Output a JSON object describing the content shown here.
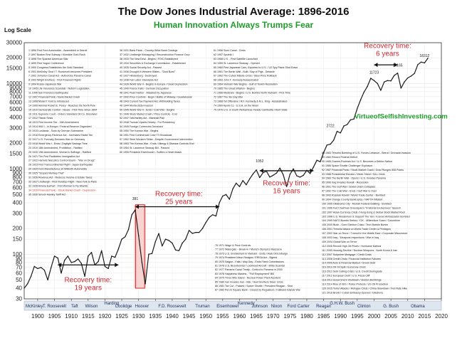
{
  "chart_data": {
    "type": "line",
    "title": "The Dow Jones Industrial Average: 1896-2016",
    "subtitle": "Human Innovation Always Trumps Fear",
    "ylabel": "Log Scale",
    "y_scale": "log",
    "ylim": [
      30,
      30000
    ],
    "xlim": [
      1896,
      2020
    ],
    "y_ticks": [
      30,
      40,
      50,
      60,
      70,
      80,
      90,
      100,
      150,
      200,
      300,
      400,
      500,
      600,
      700,
      800,
      900,
      1000,
      1500,
      2000,
      3000,
      4000,
      5000,
      6000,
      7000,
      8000,
      9000,
      10000,
      15000,
      20000,
      30000
    ],
    "y_tick_labels": [
      "30",
      "40",
      "50",
      "60",
      "70",
      "80",
      "90",
      "100",
      "150",
      "200",
      "300",
      "400",
      "500",
      "600",
      "700",
      "800",
      "900",
      "1000",
      "1500",
      "2000",
      "3000",
      "4000",
      "5000",
      "6000",
      "7000",
      "8000",
      "9000",
      "10000",
      "15000",
      "20000",
      "30000"
    ],
    "x_ticks": [
      1900,
      1905,
      1910,
      1915,
      1920,
      1925,
      1930,
      1935,
      1940,
      1945,
      1950,
      1955,
      1960,
      1965,
      1970,
      1975,
      1980,
      1985,
      1990,
      1995,
      2000,
      2005,
      2010,
      2015,
      2020
    ],
    "x_tick_labels": [
      "1900",
      "1905",
      "1910",
      "1915",
      "1920",
      "1925",
      "1930",
      "1935",
      "1940",
      "1945",
      "1950",
      "1955",
      "1960",
      "1965",
      "1970",
      "1975",
      "1980",
      "1985",
      "1990",
      "1995",
      "2000",
      "2005",
      "2010",
      "2015",
      "2020"
    ],
    "x": [
      1896,
      1897,
      1898,
      1899,
      1900,
      1901,
      1902,
      1903,
      1904,
      1905,
      1906,
      1907,
      1908,
      1909,
      1910,
      1911,
      1912,
      1913,
      1914,
      1915,
      1916,
      1917,
      1918,
      1919,
      1920,
      1921,
      1922,
      1923,
      1924,
      1925,
      1926,
      1927,
      1928,
      1929,
      1930,
      1931,
      1932,
      1933,
      1934,
      1935,
      1936,
      1937,
      1938,
      1939,
      1940,
      1941,
      1942,
      1943,
      1944,
      1945,
      1946,
      1947,
      1948,
      1949,
      1950,
      1951,
      1952,
      1953,
      1954,
      1955,
      1956,
      1957,
      1958,
      1959,
      1960,
      1961,
      1962,
      1963,
      1964,
      1965,
      1966,
      1967,
      1968,
      1969,
      1970,
      1971,
      1972,
      1973,
      1974,
      1975,
      1976,
      1977,
      1978,
      1979,
      1980,
      1981,
      1982,
      1983,
      1984,
      1985,
      1986,
      1987,
      1988,
      1989,
      1990,
      1991,
      1992,
      1993,
      1994,
      1995,
      1996,
      1997,
      1998,
      1999,
      2000,
      2001,
      2002,
      2003,
      2004,
      2005,
      2006,
      2007,
      2008,
      2009,
      2010,
      2011,
      2012,
      2013,
      2014,
      2015,
      2016
    ],
    "series": [
      {
        "color": "#1a1a1a",
        "values": [
          40,
          45,
          55,
          72,
          68,
          70,
          65,
          50,
          70,
          95,
          90,
          60,
          85,
          95,
          80,
          82,
          88,
          78,
          55,
          95,
          105,
          75,
          82,
          110,
          72,
          68,
          95,
          92,
          115,
          150,
          160,
          195,
          290,
          330,
          165,
          80,
          45,
          100,
          102,
          140,
          175,
          125,
          150,
          145,
          135,
          112,
          110,
          135,
          150,
          190,
          175,
          180,
          180,
          200,
          235,
          270,
          290,
          280,
          400,
          480,
          500,
          440,
          580,
          680,
          620,
          730,
          650,
          760,
          870,
          970,
          790,
          900,
          940,
          800,
          840,
          890,
          1020,
          850,
          620,
          860,
          1000,
          830,
          800,
          840,
          960,
          880,
          1050,
          1260,
          1210,
          1550,
          1900,
          1940,
          2170,
          2750,
          2630,
          3170,
          3300,
          3750,
          3830,
          5100,
          6450,
          7900,
          9200,
          11500,
          10800,
          10000,
          8300,
          10400,
          10800,
          10700,
          12400,
          13200,
          8800,
          10400,
          11600,
          12200,
          13100,
          16600,
          17800,
          17400,
          19800
        ]
      }
    ],
    "annotations": [
      "Recovery time:\n19 years",
      "Recovery time:\n25 years",
      "Recovery time:\n16 years",
      "Recovery time:\n6 years",
      "VirtueofSelfishInvesting.com"
    ],
    "peak_labels": [
      "381",
      "1052",
      "2722",
      "11723",
      "14165",
      "18312"
    ],
    "presidents": [
      "McKinley",
      "T. Roosevelt",
      "Taft",
      "Wilson",
      "Coolidge",
      "Harding",
      "Hoover",
      "F.D. Roosevelt",
      "Truman",
      "Eisenhower",
      "Johnson",
      "Kennedy",
      "Nixon",
      "Ford",
      "Carter",
      "Reagan",
      "G.H.W. Bush",
      "Clinton",
      "G. Bush",
      "Obama"
    ],
    "events_panel_1": [
      "1 1896 First Ford Automobile - Assembled in Detroit",
      "2 1897 Boston First Subway / Klondike Gold Rush",
      "3 1898 The Spanish American War",
      "4 1899 First Vogue Conference",
      "5 1900 Congress Establishes the Gold Standard",
      "6 1901 McKinley Shot / T. Roosevelt becomes President",
      "7 1902 Johnston Canal Act - Authorizes Panama Canal",
      "8 1903 Wright Brothers - First Powered Flights",
      "9 1904 Russo-Japanese War",
      "10 1905 Life Insurance Scandals - Reform Legislation",
      "11 1906 San Francisco Earthquake",
      "12 1907 Financial Panic / Bank Market Crash",
      "13 1908 Model T Ford is Introduced",
      "14 1909 Admiral Robert E. Peary - Reaches the North Pole",
      "15 1910 Democratic Control - House - First Time Since 1894",
      "16 1911 Supreme Court - Orders Standard Oil Co. Dissolved",
      "17 1912 Titanic Sinks",
      "18 1913 First Income Tax - 16th Amendment",
      "19 1914 WW I - in Europe / Federal Reserve Organized",
      "20 1915 Lusitania - Sunk by German Submarine",
      "21 1916 Emergency Revenue Act - Increases Estate Tax",
      "22 1917 U.S. Formally Declares War on Germany",
      "23 1918 World War I - Ends / Daylight Savings Time",
      "24 1919 18th Amendment, Prohibition - Ratified",
      "25 1920 19th Amendment, Women's Suffrage - Ratified",
      "26 1921 The First Radiotelex Immigration Act",
      "27 1922 Harrods Narcotics Control Board - \"War on Drugs\"",
      "28 1923 First Transcontinental Flight / Japan Earthquake",
      "29 1924 Ford Manufactures 10 Millionth Automobile",
      "30 1925 \"Scopes Monkey Trial\"",
      "31 1926 Revenue Act - Reduces Income & Estate Taxes",
      "32 1927 Lindbergh - First Nonstop Flight - New York to Paris",
      "33 1928 Amelia Earhart - First Woman to Fly Atlantic",
      "34 1929 Financial Panic - Stock Market Crash - Depression",
      "35 1930 Smoot-Hawley Tariff Act"
    ],
    "events_panel_2": [
      "36 1931 Bank Panic - Country-Wide Bank Closings",
      "37 1932 Lindbergh Kidnapping / Reconstruction Finance Corp",
      "38 1933 The New Deal - Begins / FDIC Established",
      "39 1934 Securities & Exchange Commission - Established",
      "40 1935 Social Security Act - Passed",
      "41 1936 Drought in Western States - \"Dust Bowl\"",
      "42 1937 Hindenburg - Destroyed",
      "43 1938 Fair Labor Standards Act",
      "44 1939 World War II - Begins in Europe / Great Depression",
      "45 1940 France Falls - German Occupation",
      "46 1941 Pearl Harbor - Attacked by Japanese",
      "47 1942 Price Controls - Begin / Battle of Midway / Guadalcanal",
      "48 1943 Current Tax Payment Act, Withholding Taxes",
      "49 1944 Montecristy Invasion",
      "50 1945 World War II - Ends / Cold War - Begins",
      "51 1946 Stock Market Crash / Price Controls - End",
      "52 1947 Taft-Hartley Act - Marshall Plan",
      "53 1948 Truman Upsets Dewey - For Presidency",
      "54 1949 Foreign Currencies Devalued",
      "55 1950 The Korean War - Begins",
      "56 1951 First Commercial Color TV Broadcast",
      "57 1952 Steel Workers Strike - Despite Government Intervention",
      "58 1953 The Korean War - Ends / Allergy & Disease Controls End",
      "59 1954 St. Lawrence Seaway Bill - Passed",
      "60 1955 President Eisenhower - Suffers a Heart Attack"
    ],
    "events_panel_3": [
      "61 1956 Suez Canal - Crisis",
      "62 1957 Sputnik I",
      "63 1958 U.S. - First Satellite Launched",
      "64 1959 St. Lawrence Seaway - Opened",
      "65 1960 First Japanese Cars, Exported to U.S. / U2 Spy Plane Shot Down",
      "66 1961 The Berlin Wall - Built / Bay of Pigs - Debacle",
      "67 1962 The Cuban Missile Crisis / Steel Price Rollback",
      "68 1963 John F. Kennedy Assassinated",
      "69 1964 Vietnam War Begins - Gulf of Tonkin Resolution",
      "70 1965 The Great Inflation - Begins",
      "71 1966 Medicare - Begins / U.S. Bombs North Vietnam - First Time",
      "72 1967 The Six Day War",
      "73 1968 Tet Offensive / R.F. Kennedy & M.L. King - Assassinated",
      "74 1969 Apollo 11 - U.S.A. on the Moon",
      "75 1970 U.S. & South Vietnamese Invade Cambodia / Kent State"
    ],
    "events_panel_4": [
      "76 1971 Wage & Price Controls",
      "77 1972 Watergate - Break-in / Munich Olympics Massacre",
      "78 1973 U.S. Involvement in Vietnam - Ends / Arab Oil Embargo",
      "79 1974 President Nixon Resigns / ERISA Act - Signed",
      "80 1975 Saigon - Falls / May Day - Ends Fixed Commissions",
      "81 1976 U.S. Bicentennial / Lockheed Aircraft - Bribe Scandal",
      "82 1977 Panama Canal Treaty - Control to Panama in 2000",
      "83 1978 Happiness Maxims - \"Full Employment\" Bill",
      "84 1979 Three Mile Island - Nuclear Power Plant Accident",
      "85 1980 Iran Invades Iran - War / Hunt Brothers Silver Crisis",
      "86 1981 Tax Cut - Passed / Space Shuttle / President Reagan - Shot",
      "87 1982 Peru's Square Bank - Closed by Regulators / Falkland Islands War"
    ],
    "events_panel_5": [
      "88 1983 Terrorist Bombing of U.S. Forces Lebanon - Beirut / Grenada Invasion",
      "89 1984 Record Federal Deficit",
      "90 1985 Gramm-Rudman Act / U.S. Becomes a Debtor Nation",
      "91 1986 Space Shuttle Challenger Explosion",
      "92 1987 Financial Panic / Stock Market Crash / Dow Plunges 508 Points",
      "93 1988 Presidential Election / Meek Street / S&L Crisis",
      "94 1989 The Berlin Wall - Opens / U.S. Invades Panama",
      "95 1990 Iraq Invades Kuwait - Recession",
      "96 1991 The Gulf War / Soviet Union Collapses",
      "97 1992 The Cold War - Ends / Gulf War Is Over",
      "98 1993 Russian Revolt / World Trade Center - Bombed",
      "99 1994 Orange County Bankruptcy / NAFTA Initiated",
      "100 1995 Oklahoma City - Murrah Federal Building - Bombed",
      "101 1996 Fed Chairman Greenspan's \"Irrational Exuberance\" Speech",
      "102 1997 Asian Currency Crisis / Hong Kong & Global Stock Market Rout",
      "103 1998 U.S. Moratorium & Support The Yen / Kosovo Ambassador Bombed",
      "104 1999 NATO Bombs Serbia / Y2K - Millennium Scare / Columbine",
      "105 2000 Bush - Gore Election Crisis / Tech Bubble Bursts",
      "106 2001 Terrorist Attack on World Trade Center & Pentagon",
      "107 2002 War on Terror / Turmoil in the Middle East / Corporate Misconduct",
      "108 2003 Iraq - Weapons Inspections / War in Iraq",
      "109 2004 Global War on Terror",
      "110 2005 Record High Oil Prices / Hurricane Katrina",
      "111 2006 Housing Decline / Nuclear Weapons - North Korea & Iran",
      "112 2007 Subprime Mortgage / Credit Crisis",
      "113 2008 Credit Crisis / Financial Institution Failures",
      "114 2009 Auto & Financial Bailout / Greek Debt",
      "115 2010 Oil Oil Spill / Eurozone Crisis",
      "116 2011 Debt Ceiling Crisis / U.S. Credit Downgrade",
      "117 2012 European Debt / U.S. Fiscal Cliff",
      "118 2013 Government Shutdown / Boston Bombings",
      "119 2014 Rise of ISIS / Police Protests / US Oil Production",
      "120 2015 Terror Attacks / Refugee Crisis / China Slowdown / Fed Rate Hike",
      "121 2016 Brexit / Cuban Embassy Opened / Elections"
    ]
  }
}
